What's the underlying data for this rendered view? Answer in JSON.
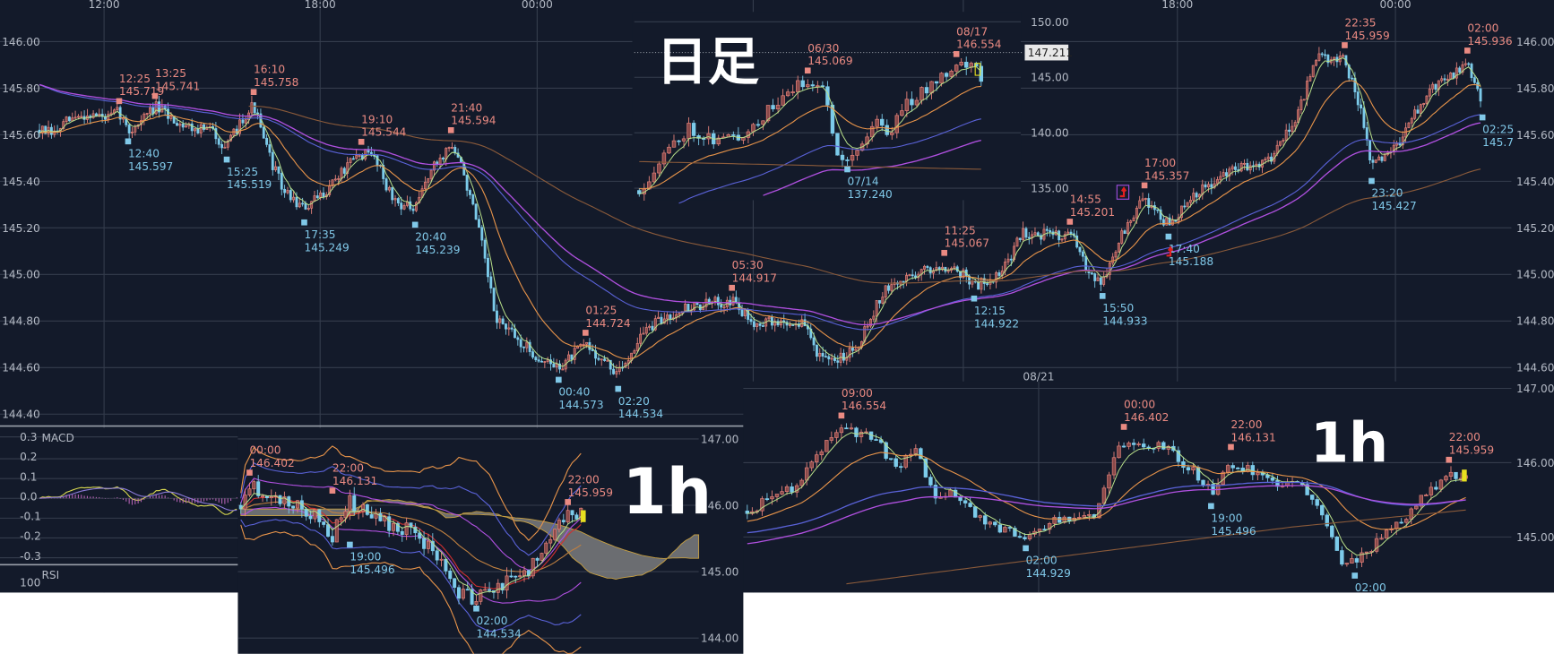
{
  "colors": {
    "background": "#131a2a",
    "grid": "#343c4c",
    "axis_text": "#b3b9c4",
    "up_candle": "#e8847c",
    "down_candle": "#7ccbea",
    "high_label": "#ea8a82",
    "low_label": "#80c8e8",
    "ma_short": "#b8e08a",
    "ma_mid": "#e8944a",
    "ma_long_blue": "#5a62d8",
    "ma_long_purple": "#b050e0",
    "ma_very_long": "#8a5a3a",
    "handwriting": "#ffffff"
  },
  "main_chart": {
    "time_labels": [
      "12:00",
      "18:00",
      "00:00",
      "18:00",
      "00:00"
    ],
    "left_price_labels": [
      "146.00",
      "145.80",
      "145.60",
      "145.40",
      "145.20",
      "145.00",
      "144.80",
      "144.60",
      "144.40"
    ],
    "right_price_labels": [
      "146.00",
      "145.80",
      "145.60",
      "145.40",
      "145.20",
      "145.00",
      "144.80",
      "144.60"
    ],
    "annotations": [
      {
        "type": "high",
        "time": "12:25",
        "price": "145.719"
      },
      {
        "type": "low",
        "time": "12:40",
        "price": "145.597"
      },
      {
        "type": "high",
        "time": "13:25",
        "price": "145.741"
      },
      {
        "type": "low",
        "time": "15:25",
        "price": "145.519"
      },
      {
        "type": "high",
        "time": "16:10",
        "price": "145.758"
      },
      {
        "type": "low",
        "time": "17:35",
        "price": "145.249"
      },
      {
        "type": "high",
        "time": "19:10",
        "price": "145.544"
      },
      {
        "type": "low",
        "time": "20:40",
        "price": "145.239"
      },
      {
        "type": "high",
        "time": "21:40",
        "price": "145.594"
      },
      {
        "type": "low",
        "time": "00:40",
        "price": "144.573"
      },
      {
        "type": "high",
        "time": "01:25",
        "price": "144.724"
      },
      {
        "type": "low",
        "time": "02:20",
        "price": "144.534"
      },
      {
        "type": "high",
        "time": "05:30",
        "price": "144.917"
      },
      {
        "type": "high",
        "time": "11:25",
        "price": "145.067"
      },
      {
        "type": "low",
        "time": "12:15",
        "price": "144.922"
      },
      {
        "type": "high",
        "time": "14:55",
        "price": "145.201"
      },
      {
        "type": "low",
        "time": "15:50",
        "price": "144.933"
      },
      {
        "type": "high",
        "time": "17:00",
        "price": "145.357"
      },
      {
        "type": "low",
        "time": "17:40",
        "price": "145.188"
      },
      {
        "type": "high",
        "time": "22:35",
        "price": "145.959"
      },
      {
        "type": "low",
        "time": "23:20",
        "price": "145.427"
      },
      {
        "type": "high",
        "time": "02:00",
        "price": "145.936"
      },
      {
        "type": "low",
        "time": "02:25",
        "price": "145.7"
      }
    ]
  },
  "daily_inset": {
    "handwritten_label": "日足",
    "price_labels": [
      "150.00",
      "145.00",
      "140.00",
      "135.00"
    ],
    "current_price": "147.211",
    "annotations": [
      {
        "type": "high",
        "time": "06/30",
        "price": "145.069"
      },
      {
        "type": "low",
        "time": "07/14",
        "price": "137.240"
      },
      {
        "type": "high",
        "time": "08/17",
        "price": "146.554"
      }
    ]
  },
  "macd_panel": {
    "label": "MACD",
    "labels": [
      "0.3",
      "0.2",
      "0.1",
      "0.0",
      "-0.1",
      "-0.2",
      "-0.3"
    ]
  },
  "rsi_panel": {
    "label": "RSI",
    "labels": [
      "100"
    ]
  },
  "ichimoku_1h": {
    "handwritten_label": "1h",
    "price_labels": [
      "147.00",
      "146.00",
      "145.00",
      "144.00"
    ],
    "annotations": [
      {
        "type": "high",
        "time": "00:00",
        "price": "146.402"
      },
      {
        "type": "high",
        "time": "22:00",
        "price": "146.131"
      },
      {
        "type": "low",
        "time": "19:00",
        "price": "145.496"
      },
      {
        "type": "low",
        "time": "02:00",
        "price": "144.534"
      },
      {
        "type": "high",
        "time": "22:00",
        "price": "145.959"
      }
    ]
  },
  "right_1h": {
    "handwritten_label": "1h",
    "date_label": "08/21",
    "price_labels": [
      "147.00",
      "146.00",
      "145.00"
    ],
    "annotations": [
      {
        "type": "high",
        "time": "09:00",
        "price": "146.554"
      },
      {
        "type": "low",
        "time": "02:00",
        "price": "144.929"
      },
      {
        "type": "high",
        "time": "00:00",
        "price": "146.402"
      },
      {
        "type": "low",
        "time": "19:00",
        "price": "145.496"
      },
      {
        "type": "high",
        "time": "22:00",
        "price": "146.131"
      },
      {
        "type": "low",
        "time": "02:00",
        "price": null
      },
      {
        "type": "high",
        "time": "22:00",
        "price": "145.959"
      }
    ]
  }
}
